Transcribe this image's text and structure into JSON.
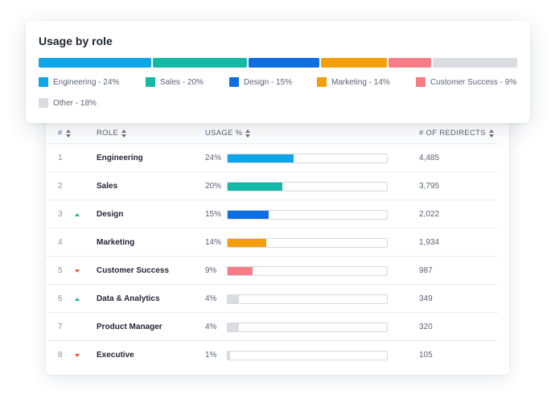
{
  "usage": {
    "title": "Usage by role",
    "segments": [
      {
        "label": "Engineering - 24%",
        "share": 24,
        "color": "#0ea5e9"
      },
      {
        "label": "Sales - 20%",
        "share": 20,
        "color": "#14b8a6"
      },
      {
        "label": "Design - 15%",
        "share": 15,
        "color": "#0f6ee0"
      },
      {
        "label": "Marketing - 14%",
        "share": 14,
        "color": "#f59e0b"
      },
      {
        "label": "Customer Success - 9%",
        "share": 9,
        "color": "#f87c86"
      },
      {
        "label": "Other - 18%",
        "share": 18,
        "color": "#dadce2"
      }
    ]
  },
  "table": {
    "headers": {
      "num": "#",
      "role": "ROLE",
      "usage": "USAGE %",
      "redirects": "# OF REDIRECTS"
    },
    "rows": [
      {
        "num": "1",
        "trend": "none",
        "role": "Engineering",
        "usage_text": "24%",
        "usage": 24,
        "color": "#0ea5e9",
        "redirects": "4,485"
      },
      {
        "num": "2",
        "trend": "none",
        "role": "Sales",
        "usage_text": "20%",
        "usage": 20,
        "color": "#14b8a6",
        "redirects": "3,795"
      },
      {
        "num": "3",
        "trend": "up",
        "role": "Design",
        "usage_text": "15%",
        "usage": 15,
        "color": "#0f6ee0",
        "redirects": "2,022"
      },
      {
        "num": "4",
        "trend": "none",
        "role": "Marketing",
        "usage_text": "14%",
        "usage": 14,
        "color": "#f59e0b",
        "redirects": "1,934"
      },
      {
        "num": "5",
        "trend": "down",
        "role": "Customer Success",
        "usage_text": "9%",
        "usage": 9,
        "color": "#f87c86",
        "redirects": "987"
      },
      {
        "num": "6",
        "trend": "up",
        "role": "Data & Analytics",
        "usage_text": "4%",
        "usage": 4,
        "color": "#dadce2",
        "redirects": "349"
      },
      {
        "num": "7",
        "trend": "none",
        "role": "Product Manager",
        "usage_text": "4%",
        "usage": 4,
        "color": "#dadce2",
        "redirects": "320"
      },
      {
        "num": "8",
        "trend": "down",
        "role": "Executive",
        "usage_text": "1%",
        "usage": 1,
        "color": "#dadce2",
        "redirects": "105"
      }
    ]
  }
}
